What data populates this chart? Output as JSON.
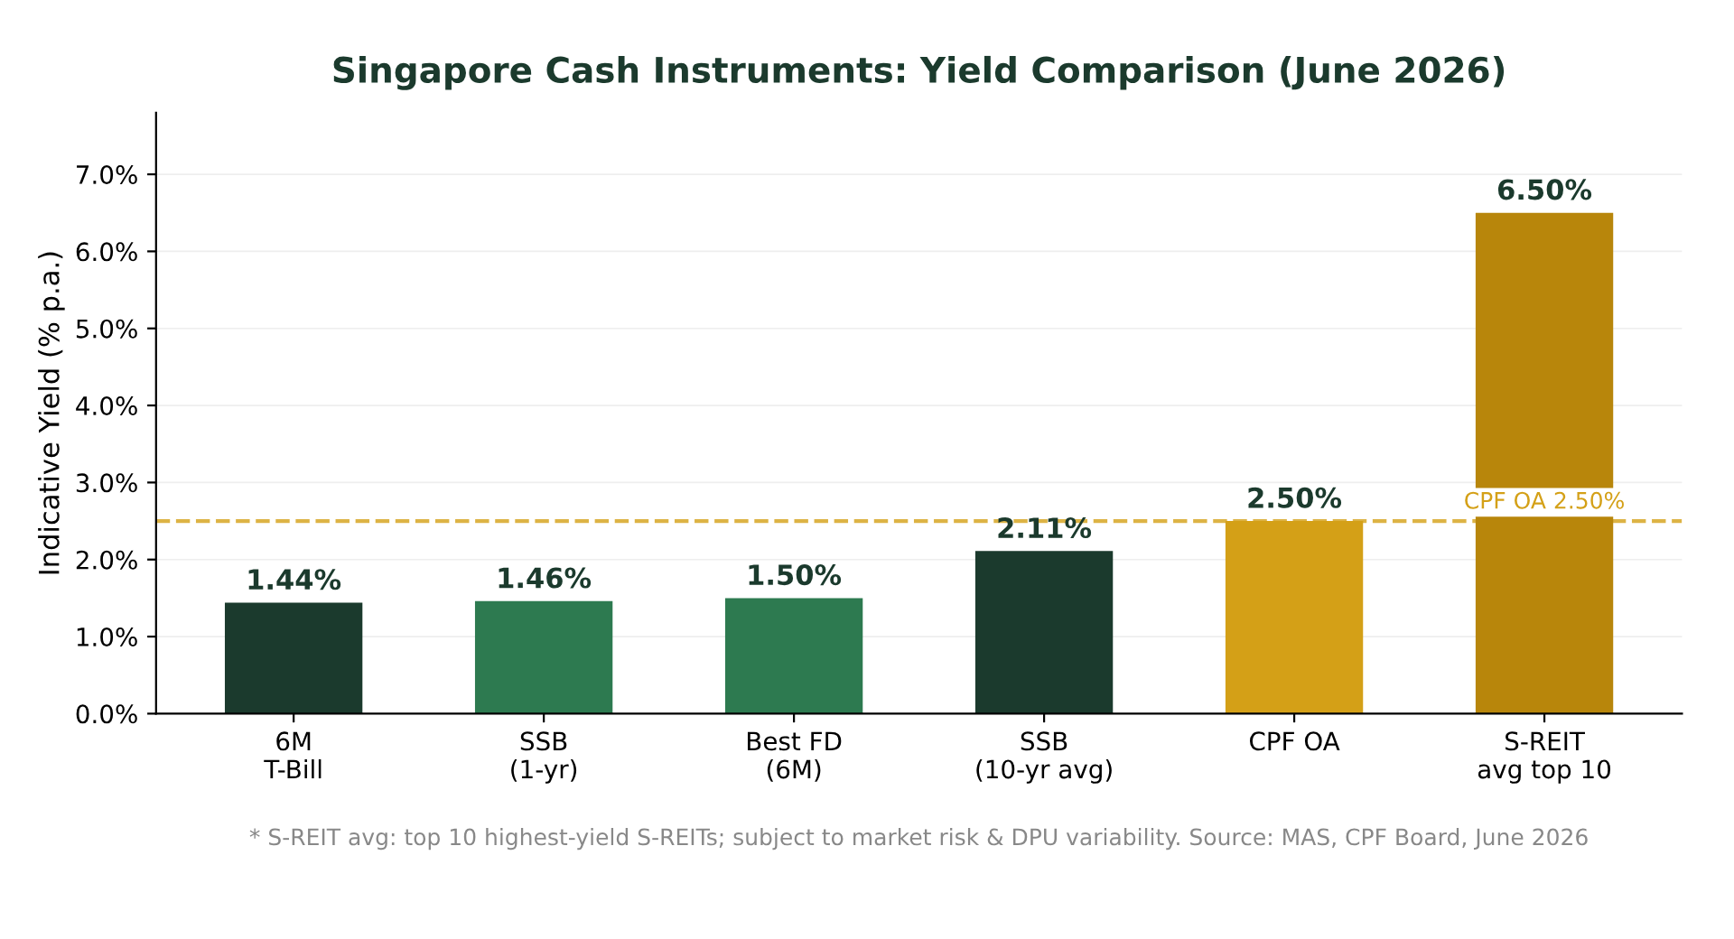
{
  "chart_data": {
    "type": "bar",
    "title": "Singapore Cash Instruments: Yield Comparison (June 2026)",
    "ylabel": "Indicative Yield (% p.a.)",
    "categories": [
      "6M\nT-Bill",
      "SSB\n(1-yr)",
      "Best FD\n(6M)",
      "SSB\n(10-yr avg)",
      "CPF OA",
      "S-REIT\navg top 10"
    ],
    "values": [
      1.44,
      1.46,
      1.5,
      2.11,
      2.5,
      6.5
    ],
    "colors": [
      "#1b3a2d",
      "#2d7a50",
      "#2d7a50",
      "#1b3a2d",
      "#d4a017",
      "#b8860b"
    ],
    "value_labels": [
      "1.44%",
      "1.46%",
      "1.50%",
      "2.11%",
      "2.50%",
      "6.50%"
    ],
    "ylim": [
      0,
      7.8
    ],
    "yticks": [
      {
        "value": 0,
        "label": "0.0%"
      },
      {
        "value": 1,
        "label": "1.0%"
      },
      {
        "value": 2,
        "label": "2.0%"
      },
      {
        "value": 3,
        "label": "3.0%"
      },
      {
        "value": 4,
        "label": "4.0%"
      },
      {
        "value": 5,
        "label": "5.0%"
      },
      {
        "value": 6,
        "label": "6.0%"
      },
      {
        "value": 7,
        "label": "7.0%"
      }
    ],
    "grid": "y",
    "ref_lines": [
      {
        "axis": "y",
        "value": 2.5,
        "label": "CPF OA 2.50%",
        "color": "#d4a017",
        "line_style": "dashed"
      }
    ],
    "annotations": [
      "* S-REIT avg: top 10 highest-yield S-REITs; subject to market risk & DPU variability. Source: MAS, CPF Board, June 2026"
    ]
  }
}
